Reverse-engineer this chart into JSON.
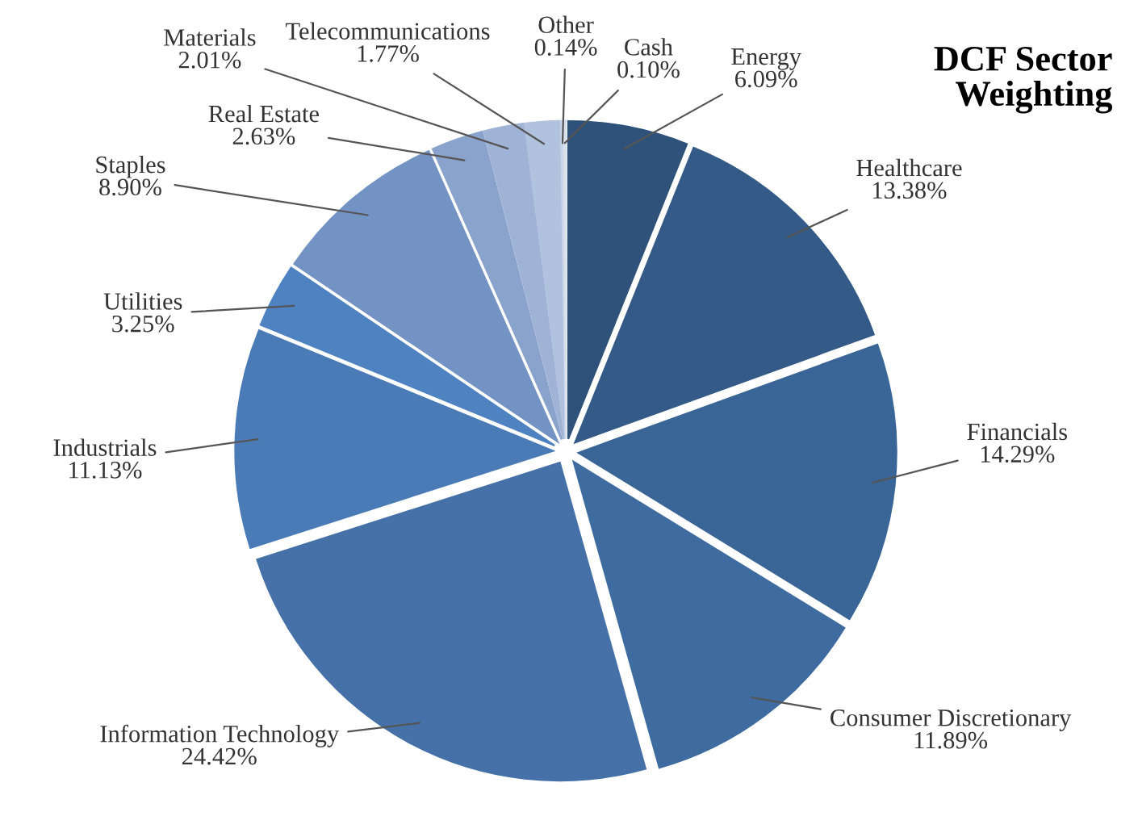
{
  "chart_data": {
    "type": "pie",
    "title": "DCF Sector Weighting",
    "categories": [
      "Energy",
      "Healthcare",
      "Financials",
      "Consumer Discretionary",
      "Information Technology",
      "Industrials",
      "Utilities",
      "Staples",
      "Real Estate",
      "Materials",
      "Telecommunications",
      "Other",
      "Cash"
    ],
    "values": [
      6.09,
      13.38,
      14.29,
      11.89,
      24.42,
      11.13,
      3.25,
      8.9,
      2.63,
      2.01,
      1.77,
      0.14,
      0.1
    ],
    "value_labels": [
      "6.09%",
      "13.38%",
      "14.29%",
      "11.89%",
      "24.42%",
      "11.13%",
      "3.25%",
      "8.90%",
      "2.63%",
      "2.01%",
      "1.77%",
      "0.14%",
      "0.10%"
    ],
    "colors": [
      "#2f527a",
      "#345a88",
      "#3a6597",
      "#3f6ca0",
      "#4571a8",
      "#4a7bb7",
      "#4f82c0",
      "#7393c4",
      "#8aa3cc",
      "#9fb3d6",
      "#b0c2de",
      "#c8d4e8",
      "#d8e0ee"
    ],
    "legend": false
  }
}
